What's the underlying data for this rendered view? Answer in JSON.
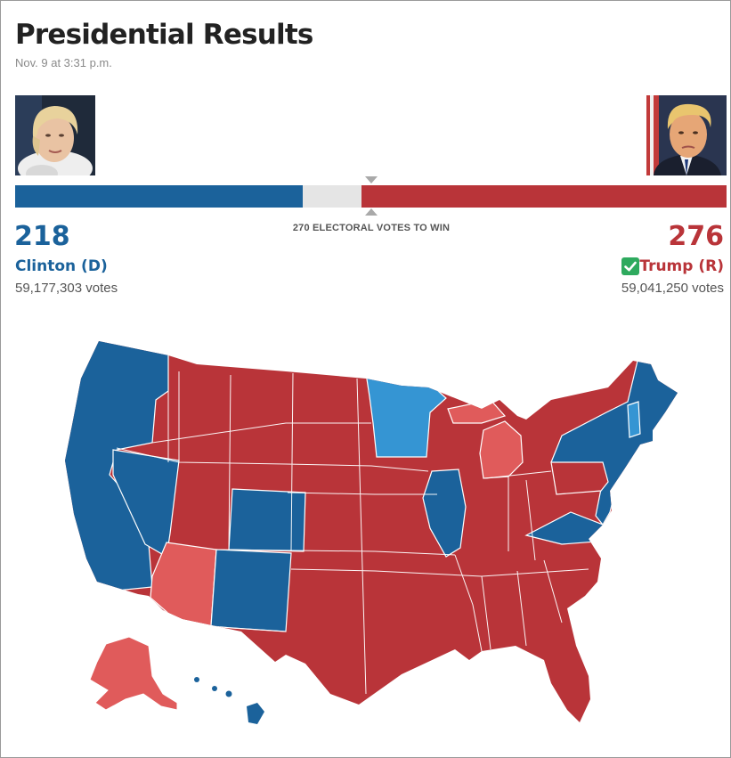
{
  "header": {
    "title": "Presidential Results",
    "timestamp": "Nov. 9 at 3:31 p.m."
  },
  "threshold": {
    "label": "270 ELECTORAL VOTES TO WIN",
    "value": 270
  },
  "total_electoral_votes": 538,
  "candidates": {
    "dem": {
      "name": "Clinton (D)",
      "electoral_votes": "218",
      "popular_votes": "59,177,303 votes",
      "color": "#1b629b",
      "winner": false
    },
    "rep": {
      "name": "Trump (R)",
      "electoral_votes": "276",
      "popular_votes": "59,041,250 votes",
      "color": "#b93439",
      "winner": true
    }
  },
  "map_legend_colors": {
    "dem_won": "#1b629b",
    "dem_leading": "#3595d3",
    "rep_won": "#b93439",
    "rep_leading": "#e05b5b"
  },
  "icons": {
    "winner": "check-icon"
  }
}
